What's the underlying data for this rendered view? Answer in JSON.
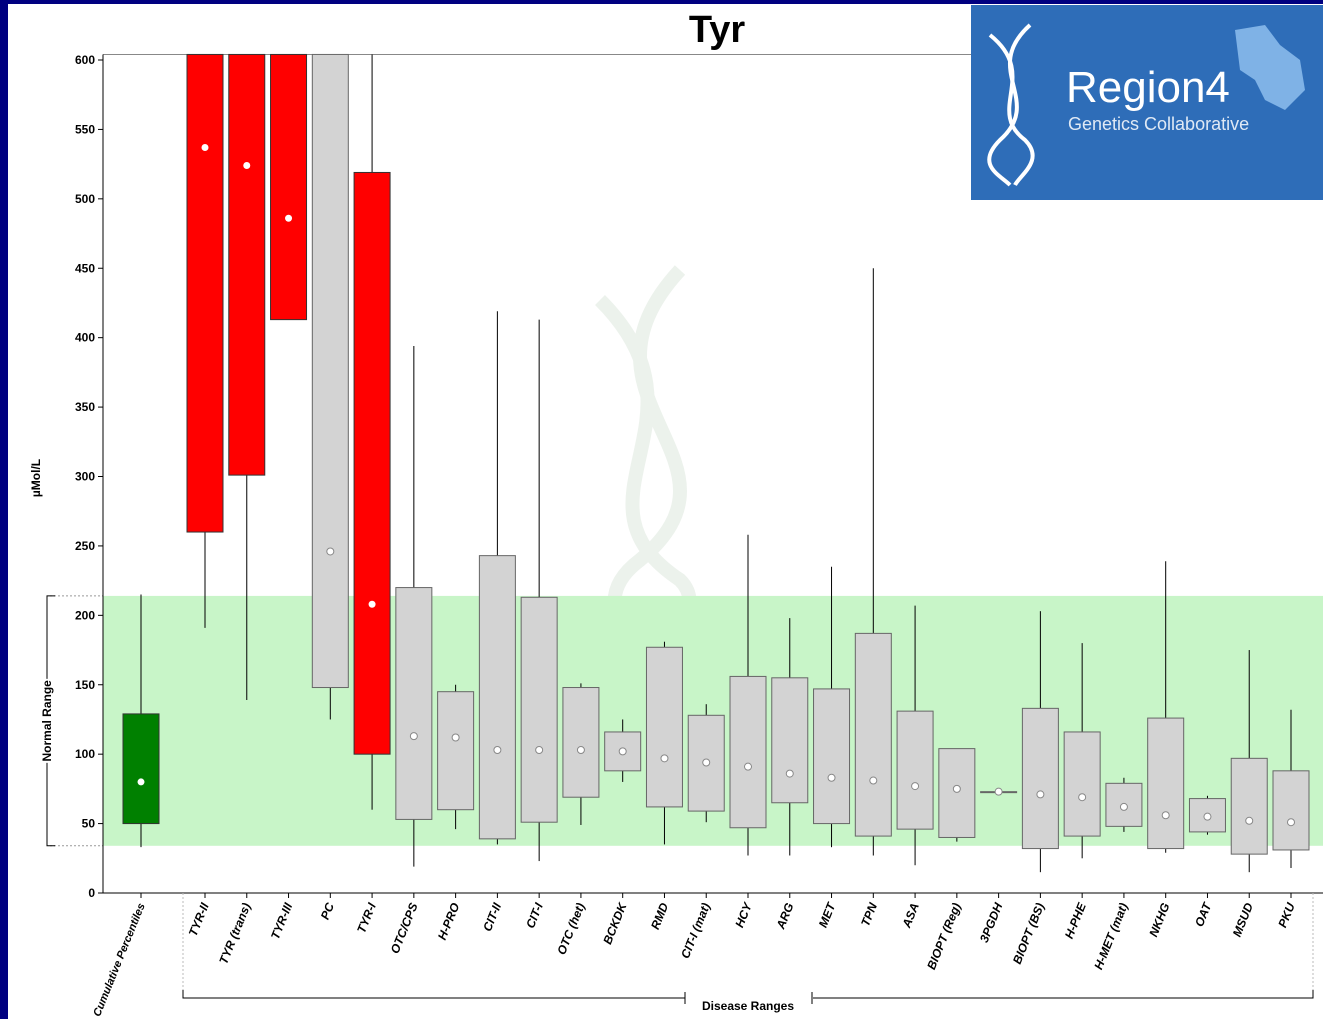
{
  "chart_data": {
    "type": "box",
    "title": "Tyr",
    "y_label": "µMol/L",
    "normal_range_label": "Normal Range",
    "disease_range_label": "Disease Ranges",
    "normal_range": [
      34,
      214
    ],
    "logo": {
      "name": "Region4",
      "subtitle": "Genetics Collaborative"
    },
    "categories": [
      "Cumulative Percentiles",
      "TYR-II",
      "TYR (trans)",
      "TYR-III",
      "PC",
      "TYR-I",
      "OTC/CPS",
      "H-PRO",
      "CIT-II",
      "CIT-I",
      "OTC (het)",
      "BCKDK",
      "RMD",
      "CIT-I (mat)",
      "HCY",
      "ARG",
      "MET",
      "TPN",
      "ASA",
      "BIOPT (Reg)",
      "3PGDH",
      "BIOPT (BS)",
      "H-PHE",
      "H-MET (mat)",
      "NKHG",
      "OAT",
      "MSUD",
      "PKU"
    ],
    "low": [
      33,
      191,
      139,
      413,
      125,
      60,
      19,
      46,
      35,
      23,
      49,
      80,
      35,
      51,
      27,
      27,
      33,
      27,
      20,
      37,
      73,
      15,
      25,
      44,
      29,
      42,
      15,
      18
    ],
    "q1": [
      50,
      260,
      301,
      413,
      148,
      100,
      53,
      60,
      39,
      51,
      69,
      88,
      62,
      59,
      47,
      65,
      50,
      41,
      46,
      40,
      73,
      32,
      41,
      48,
      32,
      44,
      28,
      31
    ],
    "median": [
      80,
      537,
      524,
      486,
      246,
      208,
      113,
      112,
      103,
      103,
      103,
      102,
      97,
      94,
      91,
      86,
      83,
      81,
      77,
      75,
      73,
      71,
      69,
      62,
      56,
      55,
      52,
      51
    ],
    "q3": [
      129,
      604,
      604,
      604,
      604,
      519,
      220,
      145,
      243,
      213,
      148,
      116,
      177,
      128,
      156,
      155,
      147,
      187,
      131,
      104,
      73,
      133,
      116,
      79,
      126,
      68,
      97,
      88
    ],
    "high": [
      215,
      604,
      604,
      604,
      604,
      604,
      394,
      150,
      419,
      413,
      151,
      125,
      181,
      136,
      258,
      198,
      235,
      450,
      207,
      104,
      73,
      203,
      180,
      83,
      239,
      70,
      175,
      132
    ],
    "colors": [
      "#008000",
      "#ff0000",
      "#ff0000",
      "#ff0000",
      "#d3d3d3",
      "#ff0000",
      "#d3d3d3",
      "#d3d3d3",
      "#d3d3d3",
      "#d3d3d3",
      "#d3d3d3",
      "#d3d3d3",
      "#d3d3d3",
      "#d3d3d3",
      "#d3d3d3",
      "#d3d3d3",
      "#d3d3d3",
      "#d3d3d3",
      "#d3d3d3",
      "#d3d3d3",
      "#d3d3d3",
      "#d3d3d3",
      "#d3d3d3",
      "#d3d3d3",
      "#d3d3d3",
      "#d3d3d3",
      "#d3d3d3",
      "#d3d3d3"
    ],
    "normal_color": "#c8f5c8",
    "ylim": [
      0,
      604
    ],
    "yticks": [
      0,
      50,
      100,
      150,
      200,
      250,
      300,
      350,
      400,
      450,
      500,
      550,
      600
    ]
  }
}
